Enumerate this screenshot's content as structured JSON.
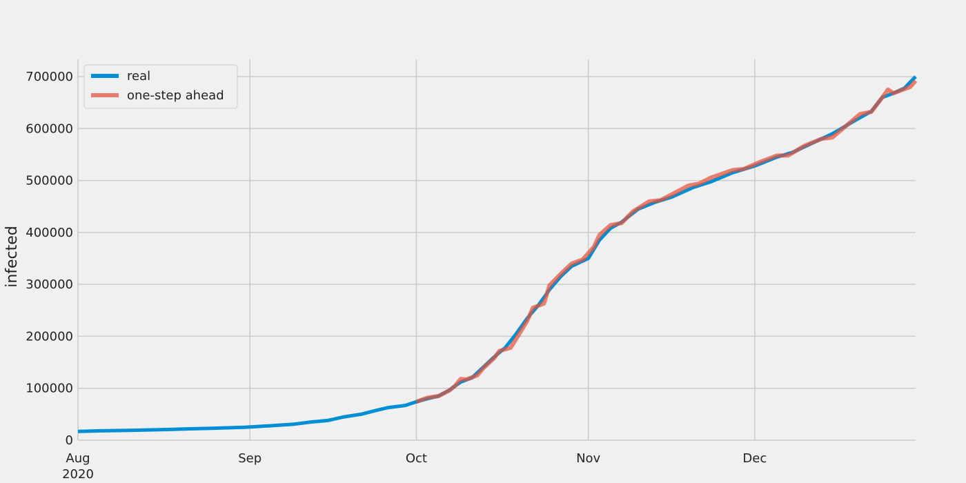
{
  "chart_data": {
    "type": "line",
    "title": "",
    "xlabel": "",
    "ylabel": "infected",
    "x_axis": {
      "range": [
        "2020-08-01",
        "2020-12-30"
      ],
      "ticks": [
        {
          "date": "2020-08-01",
          "label": "Aug",
          "sublabel": "2020"
        },
        {
          "date": "2020-09-01",
          "label": "Sep",
          "sublabel": ""
        },
        {
          "date": "2020-10-01",
          "label": "Oct",
          "sublabel": ""
        },
        {
          "date": "2020-11-01",
          "label": "Nov",
          "sublabel": ""
        },
        {
          "date": "2020-12-01",
          "label": "Dec",
          "sublabel": ""
        }
      ]
    },
    "y_axis": {
      "range": [
        0,
        700000
      ],
      "ticks": [
        0,
        100000,
        200000,
        300000,
        400000,
        500000,
        600000,
        700000
      ],
      "tick_labels": [
        "0",
        "100000",
        "200000",
        "300000",
        "400000",
        "500000",
        "600000",
        "700000"
      ]
    },
    "grid": true,
    "legend": {
      "position": "top-left"
    },
    "series": [
      {
        "name": "real",
        "color": "#008fd5",
        "points": [
          [
            "2020-08-01",
            17000
          ],
          [
            "2020-08-05",
            18000
          ],
          [
            "2020-08-10",
            19000
          ],
          [
            "2020-08-15",
            20000
          ],
          [
            "2020-08-20",
            21500
          ],
          [
            "2020-08-25",
            23000
          ],
          [
            "2020-08-31",
            25000
          ],
          [
            "2020-09-05",
            28000
          ],
          [
            "2020-09-09",
            31000
          ],
          [
            "2020-09-12",
            35000
          ],
          [
            "2020-09-15",
            38000
          ],
          [
            "2020-09-18",
            45000
          ],
          [
            "2020-09-21",
            50000
          ],
          [
            "2020-09-24",
            58000
          ],
          [
            "2020-09-26",
            63000
          ],
          [
            "2020-09-29",
            67000
          ],
          [
            "2020-10-01",
            74000
          ],
          [
            "2020-10-03",
            80000
          ],
          [
            "2020-10-05",
            85000
          ],
          [
            "2020-10-07",
            97000
          ],
          [
            "2020-10-09",
            112000
          ],
          [
            "2020-10-11",
            120000
          ],
          [
            "2020-10-13",
            140000
          ],
          [
            "2020-10-15",
            160000
          ],
          [
            "2020-10-17",
            178000
          ],
          [
            "2020-10-19",
            205000
          ],
          [
            "2020-10-21",
            235000
          ],
          [
            "2020-10-23",
            260000
          ],
          [
            "2020-10-25",
            290000
          ],
          [
            "2020-10-27",
            315000
          ],
          [
            "2020-10-29",
            335000
          ],
          [
            "2020-11-01",
            350000
          ],
          [
            "2020-11-03",
            385000
          ],
          [
            "2020-11-05",
            408000
          ],
          [
            "2020-11-07",
            420000
          ],
          [
            "2020-11-10",
            445000
          ],
          [
            "2020-11-13",
            458000
          ],
          [
            "2020-11-16",
            468000
          ],
          [
            "2020-11-20",
            487000
          ],
          [
            "2020-11-23",
            497000
          ],
          [
            "2020-11-27",
            515000
          ],
          [
            "2020-12-01",
            528000
          ],
          [
            "2020-12-05",
            545000
          ],
          [
            "2020-12-08",
            555000
          ],
          [
            "2020-12-12",
            575000
          ],
          [
            "2020-12-15",
            590000
          ],
          [
            "2020-12-19",
            615000
          ],
          [
            "2020-12-22",
            633000
          ],
          [
            "2020-12-24",
            660000
          ],
          [
            "2020-12-26",
            668000
          ],
          [
            "2020-12-28",
            678000
          ],
          [
            "2020-12-30",
            700000
          ]
        ]
      },
      {
        "name": "one-step ahead",
        "color": "#e5533c",
        "points": [
          [
            "2020-10-01",
            74000
          ],
          [
            "2020-10-03",
            82000
          ],
          [
            "2020-10-05",
            85000
          ],
          [
            "2020-10-07",
            96000
          ],
          [
            "2020-10-08",
            105000
          ],
          [
            "2020-10-09",
            118000
          ],
          [
            "2020-10-10",
            117000
          ],
          [
            "2020-10-12",
            125000
          ],
          [
            "2020-10-13",
            138000
          ],
          [
            "2020-10-15",
            158000
          ],
          [
            "2020-10-16",
            172000
          ],
          [
            "2020-10-18",
            178000
          ],
          [
            "2020-10-19",
            195000
          ],
          [
            "2020-10-21",
            230000
          ],
          [
            "2020-10-22",
            255000
          ],
          [
            "2020-10-24",
            263000
          ],
          [
            "2020-10-25",
            298000
          ],
          [
            "2020-10-27",
            320000
          ],
          [
            "2020-10-29",
            340000
          ],
          [
            "2020-10-31",
            348000
          ],
          [
            "2020-11-02",
            372000
          ],
          [
            "2020-11-03",
            395000
          ],
          [
            "2020-11-05",
            414000
          ],
          [
            "2020-11-07",
            418000
          ],
          [
            "2020-11-09",
            440000
          ],
          [
            "2020-11-12",
            460000
          ],
          [
            "2020-11-14",
            462000
          ],
          [
            "2020-11-16",
            473000
          ],
          [
            "2020-11-19",
            490000
          ],
          [
            "2020-11-21",
            494000
          ],
          [
            "2020-11-23",
            505000
          ],
          [
            "2020-11-27",
            520000
          ],
          [
            "2020-11-29",
            522000
          ],
          [
            "2020-12-02",
            536000
          ],
          [
            "2020-12-05",
            548000
          ],
          [
            "2020-12-07",
            548000
          ],
          [
            "2020-12-10",
            567000
          ],
          [
            "2020-12-13",
            580000
          ],
          [
            "2020-12-15",
            583000
          ],
          [
            "2020-12-18",
            610000
          ],
          [
            "2020-12-20",
            628000
          ],
          [
            "2020-12-22",
            632000
          ],
          [
            "2020-12-24",
            660000
          ],
          [
            "2020-12-25",
            675000
          ],
          [
            "2020-12-26",
            668000
          ],
          [
            "2020-12-29",
            680000
          ],
          [
            "2020-12-30",
            692000
          ]
        ]
      }
    ]
  }
}
